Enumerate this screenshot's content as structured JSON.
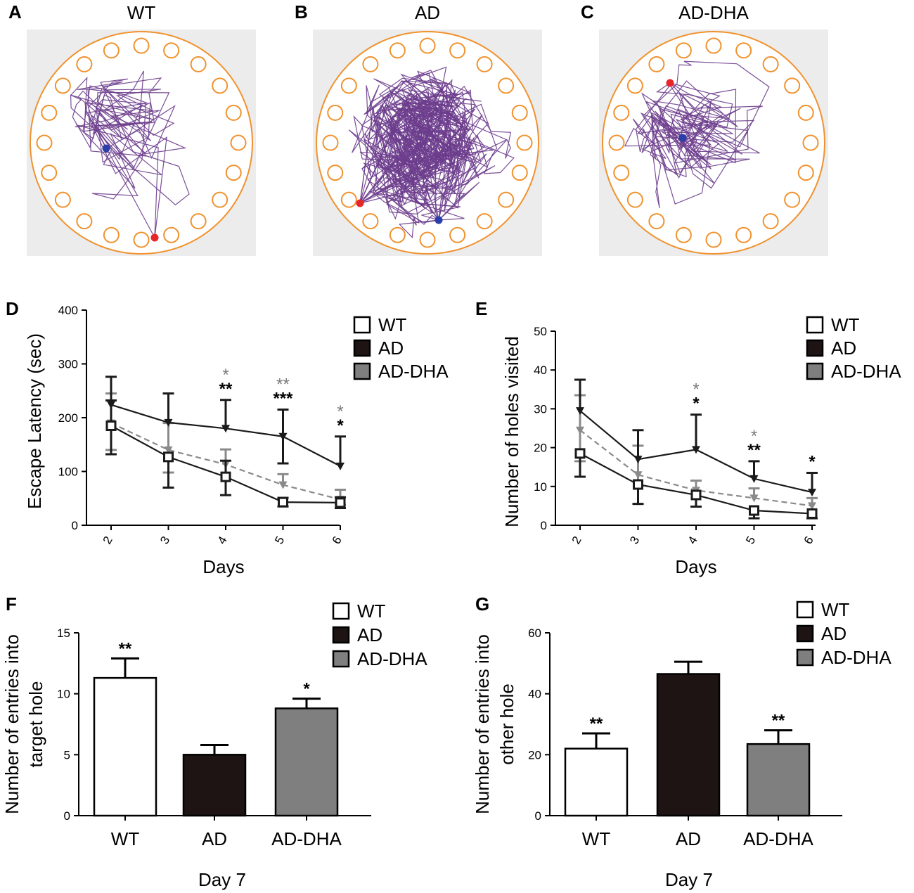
{
  "colors": {
    "wt": "#ffffff",
    "ad": "#1e1414",
    "dha": "#7f7f7f",
    "dha_line": "#8a8a8a",
    "sig_gray": "#7a7a7a",
    "arena_bg": "#ececec",
    "arena_rim": "#f0922e",
    "track": "#6b3c8c",
    "start_dot": "#2a3faa",
    "end_dot": "#e8262a"
  },
  "maze_panels": [
    {
      "letter": "A",
      "title": "WT"
    },
    {
      "letter": "B",
      "title": "AD"
    },
    {
      "letter": "C",
      "title": "AD-DHA"
    }
  ],
  "chart_data": [
    {
      "panel": "D",
      "type": "line",
      "xlabel": "Days",
      "ylabel": "Escape Latency (sec)",
      "ylim": [
        0,
        400
      ],
      "yticks": [
        0,
        100,
        200,
        300,
        400
      ],
      "x": [
        "2",
        "3",
        "4",
        "5",
        "6"
      ],
      "series": [
        {
          "name": "WT",
          "values": [
            185,
            127,
            90,
            43,
            42
          ],
          "err_up": [
            47,
            0,
            30,
            8,
            10
          ],
          "err_down": [
            53,
            57,
            34,
            8,
            10
          ]
        },
        {
          "name": "AD",
          "values": [
            224,
            191,
            180,
            165,
            110
          ],
          "err_up": [
            52,
            54,
            53,
            50,
            55
          ],
          "err_down": [
            0,
            0,
            0,
            50,
            0
          ]
        },
        {
          "name": "AD-DHA",
          "values": [
            190,
            140,
            113,
            75,
            48
          ],
          "err_up": [
            55,
            50,
            28,
            20,
            18
          ],
          "err_down": [
            50,
            42,
            0,
            0,
            10
          ]
        }
      ],
      "significance": [
        {
          "x": "4",
          "gray": "*",
          "black": "**"
        },
        {
          "x": "5",
          "gray": "**",
          "black": "***"
        },
        {
          "x": "6",
          "gray": "*",
          "black": "*"
        }
      ],
      "legend": [
        "WT",
        "AD",
        "AD-DHA"
      ]
    },
    {
      "panel": "E",
      "type": "line",
      "xlabel": "Days",
      "ylabel": "Number of holes visited",
      "ylim": [
        0,
        50
      ],
      "yticks": [
        0,
        10,
        20,
        30,
        40,
        50
      ],
      "x": [
        "2",
        "3",
        "4",
        "5",
        "6"
      ],
      "series": [
        {
          "name": "WT",
          "values": [
            18.5,
            10.5,
            7.8,
            3.8,
            3.0
          ],
          "err_up": [
            0,
            0,
            0,
            0,
            0
          ],
          "err_down": [
            6,
            5,
            3,
            2,
            1.2
          ]
        },
        {
          "name": "AD",
          "values": [
            29.5,
            17,
            19.5,
            12,
            8.5
          ],
          "err_up": [
            8,
            7.5,
            9,
            4.5,
            5
          ],
          "err_down": [
            0,
            0,
            0,
            0,
            0
          ]
        },
        {
          "name": "AD-DHA",
          "values": [
            24.5,
            13,
            9,
            7,
            5
          ],
          "err_up": [
            9,
            7.5,
            2.5,
            2.5,
            2
          ],
          "err_down": [
            8,
            7.5,
            0,
            0,
            0
          ]
        }
      ],
      "significance": [
        {
          "x": "4",
          "gray": "*",
          "black": "*"
        },
        {
          "x": "5",
          "gray": "*",
          "black": "**"
        },
        {
          "x": "6",
          "gray": "",
          "black": "*"
        }
      ],
      "legend": [
        "WT",
        "AD",
        "AD-DHA"
      ]
    },
    {
      "panel": "F",
      "type": "bar",
      "categories": [
        "WT",
        "AD",
        "AD-DHA"
      ],
      "values": [
        11.3,
        5.0,
        8.8
      ],
      "errors": [
        1.6,
        0.8,
        0.8
      ],
      "significance": [
        "**",
        "",
        "*"
      ],
      "ylabel": "Number of entries into target hole",
      "ylabel_lines": [
        "Number of entries into",
        "target hole"
      ],
      "xlabel": "Day 7",
      "ylim": [
        0,
        15
      ],
      "yticks": [
        0,
        5,
        10,
        15
      ],
      "legend": [
        "WT",
        "AD",
        "AD-DHA"
      ]
    },
    {
      "panel": "G",
      "type": "bar",
      "categories": [
        "WT",
        "AD",
        "AD-DHA"
      ],
      "values": [
        22,
        46.5,
        23.5
      ],
      "errors": [
        5,
        4,
        4.5
      ],
      "significance": [
        "**",
        "",
        "**"
      ],
      "ylabel": "Number of entries into other hole",
      "ylabel_lines": [
        "Number of entries into",
        "other hole"
      ],
      "xlabel": "Day 7",
      "ylim": [
        0,
        60
      ],
      "yticks": [
        0,
        20,
        40,
        60
      ],
      "legend": [
        "WT",
        "AD",
        "AD-DHA"
      ]
    }
  ]
}
